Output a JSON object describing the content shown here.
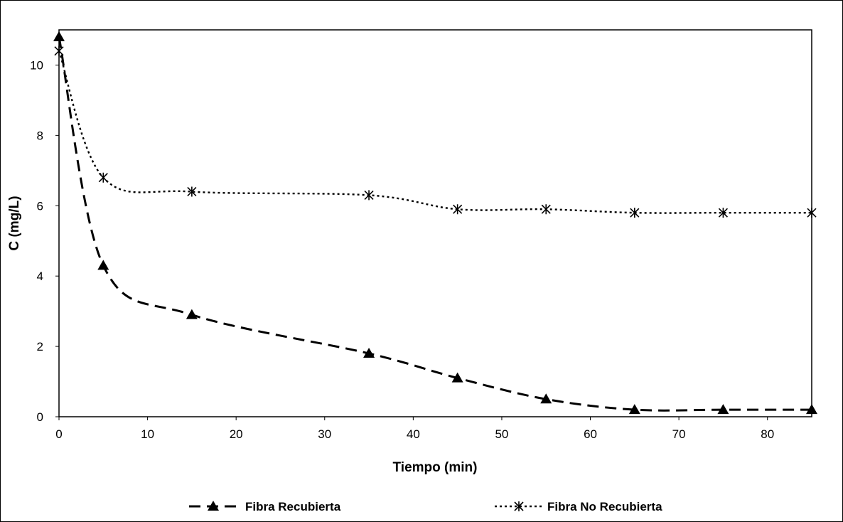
{
  "chart_data": {
    "type": "line",
    "xlabel": "Tiempo (min)",
    "ylabel": "C (mg/L)",
    "xlim": [
      0,
      85
    ],
    "ylim": [
      0,
      11
    ],
    "x_ticks": [
      0,
      10,
      20,
      30,
      40,
      50,
      60,
      70,
      80
    ],
    "y_ticks": [
      0,
      2,
      4,
      6,
      8,
      10
    ],
    "grid": false,
    "legend_position": "bottom",
    "series": [
      {
        "name": "Fibra Recubierta",
        "marker": "triangle",
        "line_style": "dashed",
        "color": "#000000",
        "x": [
          0,
          5,
          15,
          35,
          45,
          55,
          65,
          75,
          85
        ],
        "y": [
          10.8,
          4.3,
          2.9,
          1.8,
          1.1,
          0.5,
          0.2,
          0.2,
          0.2
        ]
      },
      {
        "name": "Fibra No Recubierta",
        "marker": "asterisk",
        "line_style": "dotted",
        "color": "#000000",
        "x": [
          0,
          5,
          15,
          35,
          45,
          55,
          65,
          75,
          85
        ],
        "y": [
          10.4,
          6.8,
          6.4,
          6.3,
          5.9,
          5.9,
          5.8,
          5.8,
          5.8
        ]
      }
    ]
  }
}
